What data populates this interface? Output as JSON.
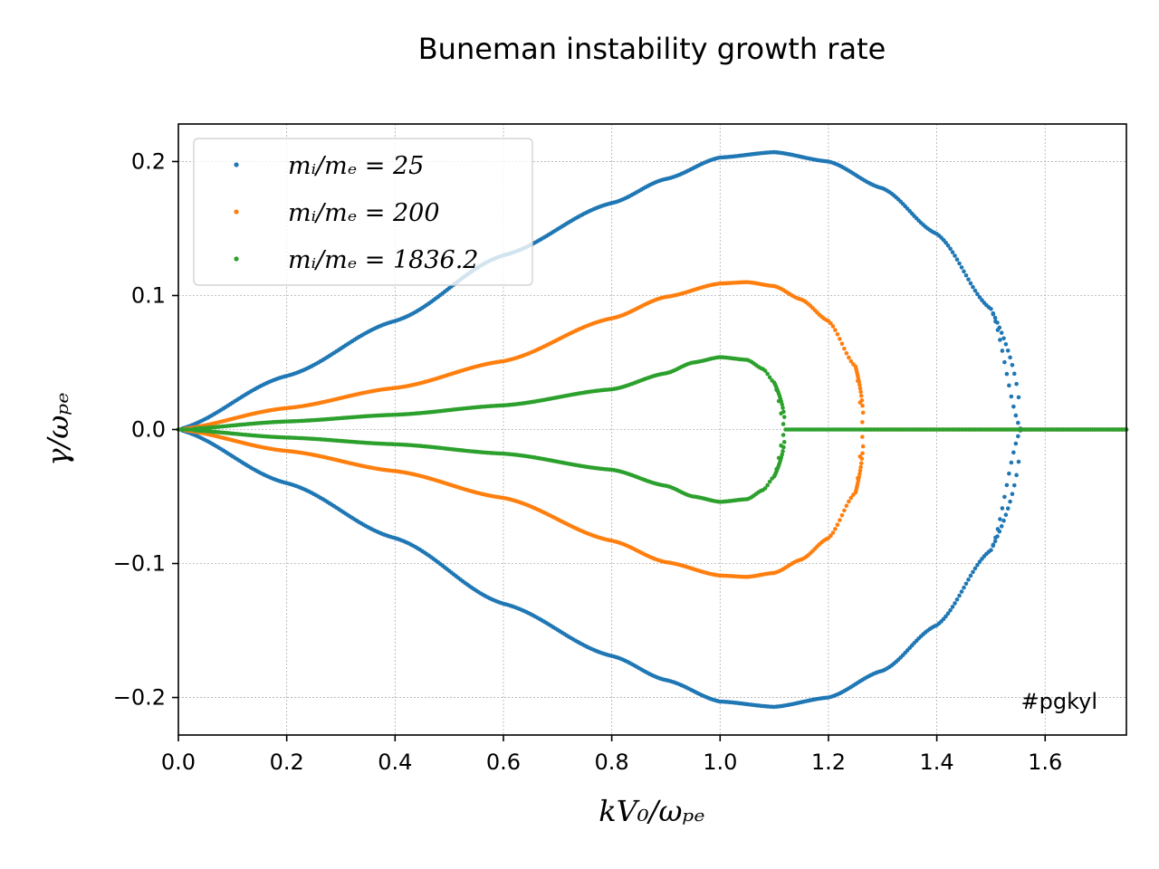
{
  "chart_data": {
    "type": "scatter",
    "title": "Buneman instability growth rate",
    "xlabel": "kV₀/ωₚₑ",
    "ylabel": "γ/ωₚₑ",
    "xlim": [
      0.0,
      1.75
    ],
    "ylim": [
      -0.228,
      0.228
    ],
    "xticks": [
      0.0,
      0.2,
      0.4,
      0.6,
      0.8,
      1.0,
      1.2,
      1.4,
      1.6
    ],
    "xtick_labels": [
      "0.0",
      "0.2",
      "0.4",
      "0.6",
      "0.8",
      "1.0",
      "1.2",
      "1.4",
      "1.6"
    ],
    "yticks": [
      -0.2,
      -0.1,
      0.0,
      0.1,
      0.2
    ],
    "ytick_labels": [
      "−0.2",
      "−0.1",
      "0.0",
      "0.1",
      "0.2"
    ],
    "grid": true,
    "legend_position": "top-left",
    "annotation": "#pgkyl",
    "series": [
      {
        "name": "mᵢ/mₑ = 25",
        "color": "#1f77b4",
        "k_cutoff": 1.555,
        "growth_points": [
          [
            0.0,
            0.0
          ],
          [
            0.2,
            0.04
          ],
          [
            0.4,
            0.081
          ],
          [
            0.6,
            0.13
          ],
          [
            0.8,
            0.169
          ],
          [
            0.9,
            0.187
          ],
          [
            1.0,
            0.203
          ],
          [
            1.1,
            0.207
          ],
          [
            1.2,
            0.2
          ],
          [
            1.3,
            0.18
          ],
          [
            1.4,
            0.146
          ],
          [
            1.5,
            0.09
          ],
          [
            1.555,
            0.0
          ]
        ]
      },
      {
        "name": "mᵢ/mₑ = 200",
        "color": "#ff7f0e",
        "k_cutoff": 1.265,
        "growth_points": [
          [
            0.0,
            0.0
          ],
          [
            0.2,
            0.016
          ],
          [
            0.4,
            0.031
          ],
          [
            0.6,
            0.051
          ],
          [
            0.8,
            0.083
          ],
          [
            0.9,
            0.099
          ],
          [
            1.0,
            0.109
          ],
          [
            1.05,
            0.11
          ],
          [
            1.1,
            0.107
          ],
          [
            1.15,
            0.097
          ],
          [
            1.2,
            0.081
          ],
          [
            1.25,
            0.047
          ],
          [
            1.265,
            0.0
          ]
        ]
      },
      {
        "name": "mᵢ/mₑ = 1836.2",
        "color": "#2ca02c",
        "k_cutoff": 1.12,
        "growth_points": [
          [
            0.0,
            0.0
          ],
          [
            0.2,
            0.006
          ],
          [
            0.4,
            0.011
          ],
          [
            0.6,
            0.018
          ],
          [
            0.8,
            0.03
          ],
          [
            0.9,
            0.042
          ],
          [
            0.95,
            0.05
          ],
          [
            1.0,
            0.054
          ],
          [
            1.05,
            0.052
          ],
          [
            1.08,
            0.045
          ],
          [
            1.1,
            0.035
          ],
          [
            1.12,
            0.0
          ]
        ]
      }
    ]
  }
}
